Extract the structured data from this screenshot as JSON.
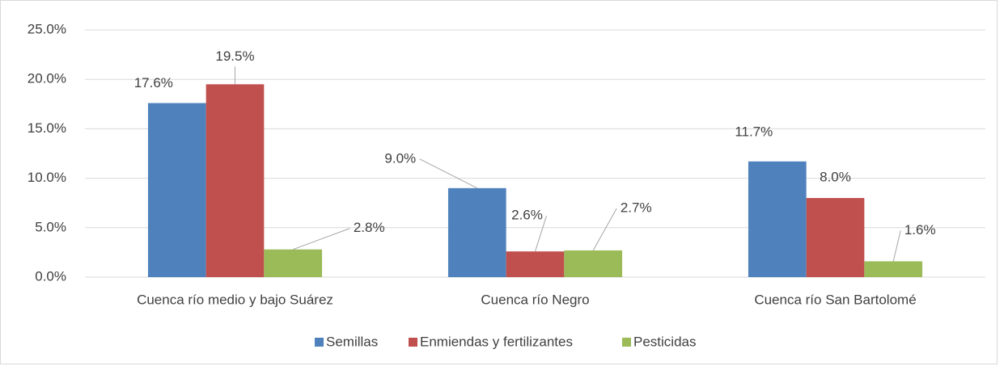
{
  "chart_data": {
    "type": "bar",
    "categories": [
      "Cuenca río medio y bajo Suárez",
      "Cuenca río Negro",
      "Cuenca río San Bartolomé"
    ],
    "series": [
      {
        "name": "Semillas",
        "color": "#4f81bd",
        "values": [
          17.6,
          9.0,
          11.7
        ],
        "value_labels": [
          "17.6%",
          "9.0%",
          "11.7%"
        ]
      },
      {
        "name": "Enmiendas y fertilizantes",
        "color": "#c0504d",
        "values": [
          19.5,
          2.6,
          8.0
        ],
        "value_labels": [
          "19.5%",
          "2.6%",
          "8.0%"
        ]
      },
      {
        "name": "Pesticidas",
        "color": "#9bbb59",
        "values": [
          2.8,
          2.7,
          1.6
        ],
        "value_labels": [
          "2.8%",
          "2.7%",
          "1.6%"
        ]
      }
    ],
    "ylim": [
      0,
      25
    ],
    "yticks": [
      {
        "value": 0,
        "label": "0.0%"
      },
      {
        "value": 5,
        "label": "5.0%"
      },
      {
        "value": 10,
        "label": "10.0%"
      },
      {
        "value": 15,
        "label": "15.0%"
      },
      {
        "value": 20,
        "label": "20.0%"
      },
      {
        "value": 25,
        "label": "25.0%"
      }
    ],
    "grid": true,
    "legend": "bottom"
  }
}
